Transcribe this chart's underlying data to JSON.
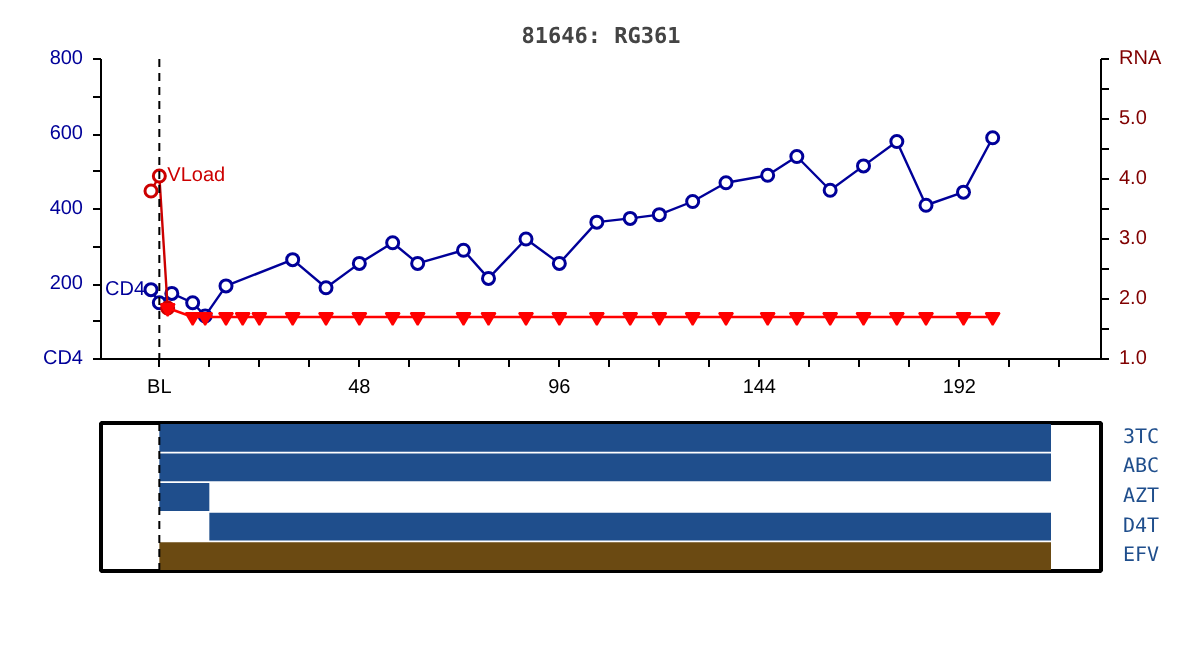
{
  "chart_data": [
    {
      "type": "line",
      "title": "81646: RG361",
      "xlim": [
        -14,
        226
      ],
      "xticks": [
        {
          "value": 0,
          "label": "BL"
        },
        {
          "value": 12,
          "label": null
        },
        {
          "value": 24,
          "label": null
        },
        {
          "value": 36,
          "label": null
        },
        48,
        {
          "value": 60,
          "label": null
        },
        {
          "value": 72,
          "label": null
        },
        {
          "value": 84,
          "label": null
        },
        96,
        {
          "value": 108,
          "label": null
        },
        {
          "value": 120,
          "label": null
        },
        {
          "value": 132,
          "label": null
        },
        144,
        {
          "value": 156,
          "label": null
        },
        {
          "value": 168,
          "label": null
        },
        {
          "value": 180,
          "label": null
        },
        192,
        {
          "value": 204,
          "label": null
        },
        {
          "value": 216,
          "label": null
        }
      ],
      "ylim": [
        0,
        800
      ],
      "yticks": [
        {
          "value": 0,
          "label": "CD4"
        },
        {
          "value": 100,
          "label": null
        },
        200,
        {
          "value": 300,
          "label": null
        },
        400,
        {
          "value": 500,
          "label": null
        },
        600,
        {
          "value": 700,
          "label": null
        },
        800
      ],
      "y2lim": [
        1,
        6
      ],
      "y2ticks": [
        {
          "value": 1,
          "label": "1.0"
        },
        {
          "value": 1.5,
          "label": null
        },
        {
          "value": 2,
          "label": "2.0"
        },
        {
          "value": 2.5,
          "label": null
        },
        {
          "value": 3,
          "label": "3.0"
        },
        {
          "value": 3.5,
          "label": null
        },
        {
          "value": 4,
          "label": "4.0"
        },
        {
          "value": 4.5,
          "label": null
        },
        {
          "value": 5,
          "label": "5.0"
        },
        {
          "value": 5.5,
          "label": null
        },
        {
          "value": 6,
          "label": "RNA"
        }
      ],
      "grid": false,
      "ref_lines": [
        {
          "axis": "x",
          "value": 0,
          "color": "#000000",
          "line_style": "dashed"
        }
      ],
      "series": [
        {
          "name": "CD4",
          "color": "#000099",
          "axis": "y",
          "marker": "circle",
          "x": [
            -2,
            0,
            3,
            8,
            11,
            16,
            32,
            40,
            48,
            56,
            62,
            73,
            79,
            88,
            96,
            105,
            113,
            120,
            128,
            136,
            146,
            153,
            161,
            169,
            177,
            184,
            193,
            200
          ],
          "values": [
            185,
            150,
            175,
            150,
            115,
            195,
            265,
            190,
            255,
            310,
            255,
            290,
            215,
            320,
            255,
            365,
            375,
            385,
            420,
            470,
            490,
            540,
            450,
            515,
            580,
            410,
            445,
            590
          ]
        },
        {
          "name": "VLoad",
          "color": "#cc0000",
          "axis": "y2",
          "marker": "circle",
          "x": [
            -2,
            0,
            2
          ],
          "values": [
            3.8,
            4.05,
            1.85
          ]
        },
        {
          "color": "#ff0000",
          "axis": "y2",
          "marker": "triangle",
          "x": [
            2,
            8,
            11,
            16,
            20,
            24,
            32,
            40,
            48,
            56,
            62,
            73,
            79,
            88,
            96,
            105,
            113,
            120,
            128,
            136,
            146,
            153,
            161,
            169,
            177,
            184,
            193,
            200
          ],
          "values": [
            1.85,
            1.7,
            1.7,
            1.7,
            1.7,
            1.7,
            1.7,
            1.7,
            1.7,
            1.7,
            1.7,
            1.7,
            1.7,
            1.7,
            1.7,
            1.7,
            1.7,
            1.7,
            1.7,
            1.7,
            1.7,
            1.7,
            1.7,
            1.7,
            1.7,
            1.7,
            1.7,
            1.7
          ]
        }
      ]
    },
    {
      "type": "bar",
      "orientation": "horizontal",
      "xlim": [
        -14,
        226
      ],
      "tick_labels": "y",
      "grid": false,
      "categories": [
        "3TC",
        "ABC",
        "AZT",
        "D4T",
        "EFV"
      ],
      "base": [
        0,
        0,
        0,
        12,
        0
      ],
      "values": [
        214,
        214,
        12,
        202,
        214
      ],
      "colors": [
        "#1f4e8c",
        "#1f4e8c",
        "#1f4e8c",
        "#1f4e8c",
        "#6b4a12"
      ],
      "ref_lines": [
        {
          "axis": "x",
          "value": 0,
          "color": "#000000",
          "line_style": "dashed"
        }
      ]
    }
  ]
}
